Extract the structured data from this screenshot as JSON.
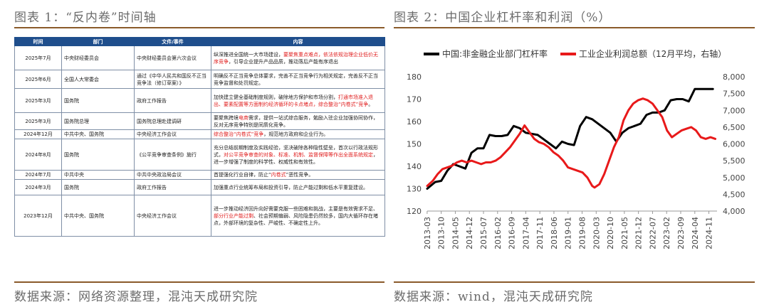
{
  "left_title": "图表 1：“反内卷”时间轴",
  "right_title": "图表 2：中国企业杠杆率和利润（%）",
  "left_source": "数据来源：网络资源整理，混沌天成研究院",
  "right_source": "数据来源：wind，混沌天成研究院",
  "table": {
    "headers": [
      "时间",
      "部门",
      "文件/事件",
      "内容"
    ],
    "rows": [
      {
        "time": "2025年7月",
        "dept": "中央财经委员会",
        "event": "中央财经委员会第六次会议",
        "content": [
          {
            "t": "纵深推进全国统一大市场建设，"
          },
          {
            "t": "要聚焦重点难点，依法依规治理企业低价无序竞争",
            "red": true
          },
          {
            "t": "，引导企业提升产品品质，推动落后产能有序退出"
          }
        ]
      },
      {
        "time": "2025年6月",
        "dept": "全国人大常委会",
        "event": "通过《中华人民共和国反不正当竞争法（修订草案）》",
        "content": [
          {
            "t": "明确反不正当竞争总体要求，完善不正当竞争行为相关规定，完善反不正当竞争监督和处罚规定。"
          }
        ]
      },
      {
        "time": "2025年3月",
        "dept": "国务院",
        "event": "政府工作报告",
        "content": [
          {
            "t": "加快建立健全基础制度规则，破除地方保护和市场分割，"
          },
          {
            "t": "打通市场准入退出、要素配置等方面制约经济循环的卡点堵点，综合整治“内卷式”竞争",
            "red": true
          },
          {
            "t": "。"
          }
        ]
      },
      {
        "time": "2025年3月",
        "dept": "国务院总理",
        "event": "国务院总理赴建调研",
        "content": [
          {
            "t": "要聚焦跨境"
          },
          {
            "t": "电商",
            "red": true
          },
          {
            "t": "需求，提供一站式综合服务，勉励入驻企业加强协同协作，反对无序竞争特别是同质化竞争。"
          }
        ]
      },
      {
        "time": "2024年12月",
        "dept": "中共中央、国务院",
        "event": "中央经济工作会议",
        "content": [
          {
            "t": "综合整治“内卷式”竞争",
            "red": true
          },
          {
            "t": "，规范地方政府和企业行为。"
          }
        ]
      },
      {
        "time": "2024年8月",
        "dept": "国务院",
        "event": "《公平竞争审查条例》施行",
        "content": [
          {
            "t": "充分总结前期制度及实践经验，坚决破除各种隐性壁垒，首次以行政法规形式，"
          },
          {
            "t": "对公平竞争审查的对象、标准、机制、监督保障等作出全面系统规定",
            "red": true
          },
          {
            "t": "，进一步增强了制度的科学性、权威性和有效性。"
          }
        ]
      },
      {
        "time": "2024年7月",
        "dept": "中共中央",
        "event": "中共中央政治局会议",
        "content": [
          {
            "t": "首提强化行业自律，防止“"
          },
          {
            "t": "内卷式",
            "red": true
          },
          {
            "t": "”恶性竞争。"
          }
        ]
      },
      {
        "time": "2024年3月",
        "dept": "国务院",
        "event": "政府工作报告",
        "content": [
          {
            "t": "加强重点行业统筹布局和投资引导，防止产能过剩和低水平重复建设。"
          }
        ]
      },
      {
        "time": "2023年12月",
        "dept": "中共中央、国务院",
        "event": "中央经济工作会议",
        "content": [
          {
            "t": "进一步推动经济回升向好需要克服一些困难和挑战，主要是有效需求不足、"
          },
          {
            "t": "部分行业产能过剩",
            "red": true
          },
          {
            "t": "、社会预期偏弱、风险隐患仍然较多，国内大循环存在堵点，外部环境的复杂性、严峻性、不确定性上升。"
          }
        ]
      }
    ]
  },
  "chart_data": {
    "type": "line",
    "x_ticks": [
      "2013-03",
      "2013-10",
      "2014-05",
      "2014-12",
      "2015-07",
      "2016-02",
      "2016-09",
      "2017-04",
      "2017-11",
      "2018-06",
      "2019-01",
      "2019-08",
      "2020-03",
      "2020-10",
      "2021-05",
      "2021-12",
      "2022-07",
      "2023-02",
      "2023-09",
      "2024-04",
      "2024-11"
    ],
    "y_left": {
      "min": 120,
      "max": 180,
      "step": 10
    },
    "y_right": {
      "min": 4000,
      "max": 8000,
      "step": 500
    },
    "series": [
      {
        "name": "中国:非金融企业部门杠杆率",
        "axis": "left",
        "color": "#000000",
        "x": [
          2013.17,
          2013.5,
          2013.75,
          2014.0,
          2014.25,
          2014.5,
          2014.75,
          2015.0,
          2015.25,
          2015.5,
          2015.75,
          2016.0,
          2016.25,
          2016.5,
          2016.75,
          2017.0,
          2017.25,
          2017.5,
          2017.75,
          2018.0,
          2018.25,
          2018.5,
          2018.75,
          2019.0,
          2019.25,
          2019.5,
          2019.75,
          2020.0,
          2020.25,
          2020.5,
          2020.75,
          2021.0,
          2021.25,
          2021.5,
          2021.75,
          2022.0,
          2022.25,
          2022.5,
          2022.75,
          2023.0,
          2023.25,
          2023.5,
          2023.75,
          2024.0,
          2024.25,
          2024.5,
          2024.75,
          2025.0
        ],
        "y": [
          130,
          133,
          133.5,
          138,
          141,
          140,
          139,
          146,
          148,
          148,
          154,
          153.5,
          153.5,
          154,
          158,
          157,
          155,
          154.5,
          154,
          152,
          150,
          148,
          151,
          150,
          149.5,
          158,
          162,
          161,
          159,
          157,
          155,
          151,
          155,
          157,
          158,
          159,
          163,
          164,
          164,
          165,
          169.5,
          170,
          170,
          169,
          174.5,
          174.5,
          174.5,
          174.5
        ]
      },
      {
        "name": "工业企业利润总额（12月平均，右轴）",
        "axis": "right",
        "color": "#e8191a",
        "x": [
          2013.17,
          2013.4,
          2013.6,
          2013.8,
          2014.0,
          2014.2,
          2014.4,
          2014.6,
          2014.8,
          2015.0,
          2015.2,
          2015.4,
          2015.6,
          2015.8,
          2016.0,
          2016.2,
          2016.4,
          2016.6,
          2016.8,
          2017.0,
          2017.2,
          2017.4,
          2017.6,
          2017.8,
          2018.0,
          2018.2,
          2018.4,
          2018.6,
          2018.8,
          2019.0,
          2019.2,
          2019.4,
          2019.6,
          2019.8,
          2020.0,
          2020.1,
          2020.3,
          2020.5,
          2020.7,
          2020.9,
          2021.1,
          2021.3,
          2021.5,
          2021.7,
          2021.9,
          2022.1,
          2022.3,
          2022.5,
          2022.7,
          2022.9,
          2023.1,
          2023.3,
          2023.5,
          2023.7,
          2023.9,
          2024.1,
          2024.3,
          2024.5,
          2024.7,
          2024.9,
          2025.1
        ],
        "y": [
          4750,
          4900,
          5100,
          5250,
          5300,
          5350,
          5450,
          5500,
          5450,
          5500,
          5450,
          5400,
          5450,
          5450,
          5500,
          5600,
          5750,
          5900,
          6100,
          6300,
          6550,
          6350,
          6150,
          6050,
          6000,
          5900,
          5750,
          5650,
          5500,
          5300,
          5250,
          5200,
          5150,
          5000,
          4750,
          4700,
          4800,
          5100,
          5500,
          5900,
          6200,
          6700,
          7000,
          7200,
          7300,
          7350,
          7300,
          7200,
          7000,
          6800,
          6400,
          6200,
          6300,
          6400,
          6450,
          6500,
          6400,
          6200,
          6150,
          6200,
          6150
        ]
      }
    ]
  }
}
